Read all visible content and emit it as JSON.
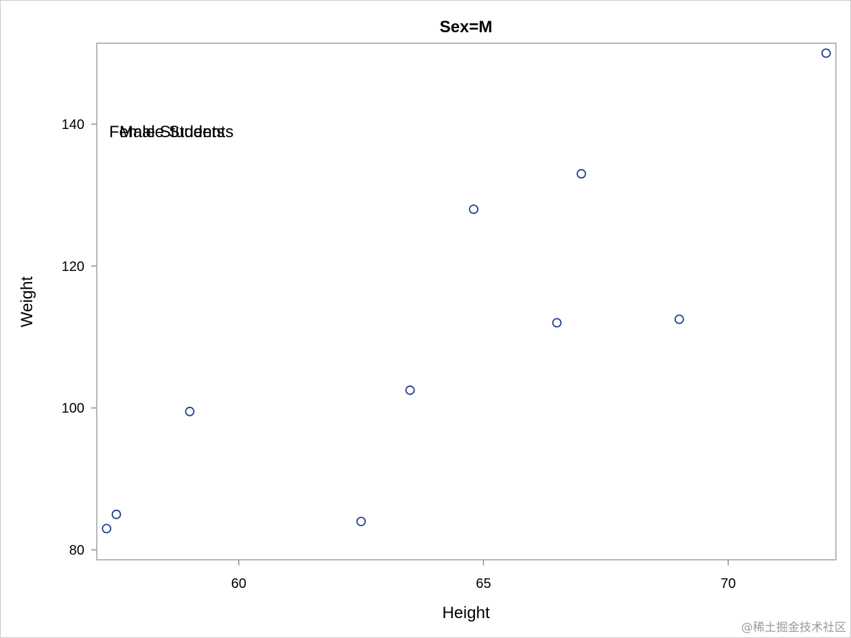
{
  "chart_data": {
    "type": "scatter",
    "title": "Sex=M",
    "xlabel": "Height",
    "ylabel": "Weight",
    "xlim": [
      57.1,
      72.2
    ],
    "ylim": [
      78.6,
      151.4
    ],
    "xticks": [
      60,
      65,
      70
    ],
    "yticks": [
      80,
      100,
      120,
      140
    ],
    "grid": false,
    "legend": "none",
    "annotations": [
      "Female Students",
      "Male Students"
    ],
    "series": [
      {
        "marker": "open-circle",
        "color": "#1f3f8f",
        "points": [
          {
            "x": 57.3,
            "y": 83
          },
          {
            "x": 57.5,
            "y": 85
          },
          {
            "x": 59.0,
            "y": 99.5
          },
          {
            "x": 62.5,
            "y": 84
          },
          {
            "x": 63.5,
            "y": 102.5
          },
          {
            "x": 64.8,
            "y": 128
          },
          {
            "x": 66.5,
            "y": 112
          },
          {
            "x": 67.0,
            "y": 133
          },
          {
            "x": 69.0,
            "y": 112.5
          },
          {
            "x": 72.0,
            "y": 150
          }
        ]
      }
    ]
  },
  "watermark": "@稀土掘金技术社区",
  "colors": {
    "marker": "#1f3f8f",
    "frame": "#a0a0a0",
    "axis": "#8c8c8c"
  }
}
